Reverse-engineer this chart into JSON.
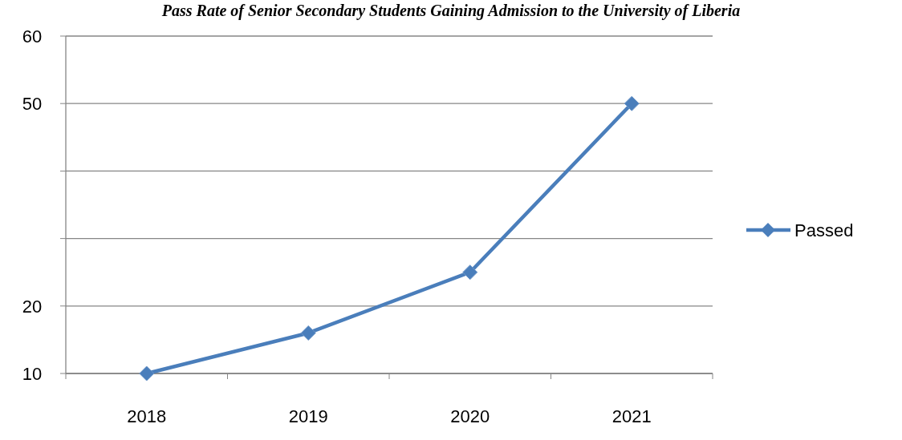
{
  "chart_data": {
    "type": "line",
    "title": "Pass Rate of Senior Secondary Students Gaining Admission to the University of Liberia",
    "categories": [
      "2018",
      "2019",
      "2020",
      "2021"
    ],
    "series": [
      {
        "name": "Passed",
        "color": "#4a7ebb",
        "values": [
          10,
          16,
          25,
          50
        ]
      }
    ],
    "ylim": [
      10,
      60
    ],
    "yticks": [
      10,
      20,
      {
        "value": 30,
        "label": null
      },
      {
        "value": 40,
        "label": null
      },
      50,
      60
    ],
    "grid": "y",
    "legend": "right",
    "marker": "diamond",
    "line_style": "solid"
  }
}
